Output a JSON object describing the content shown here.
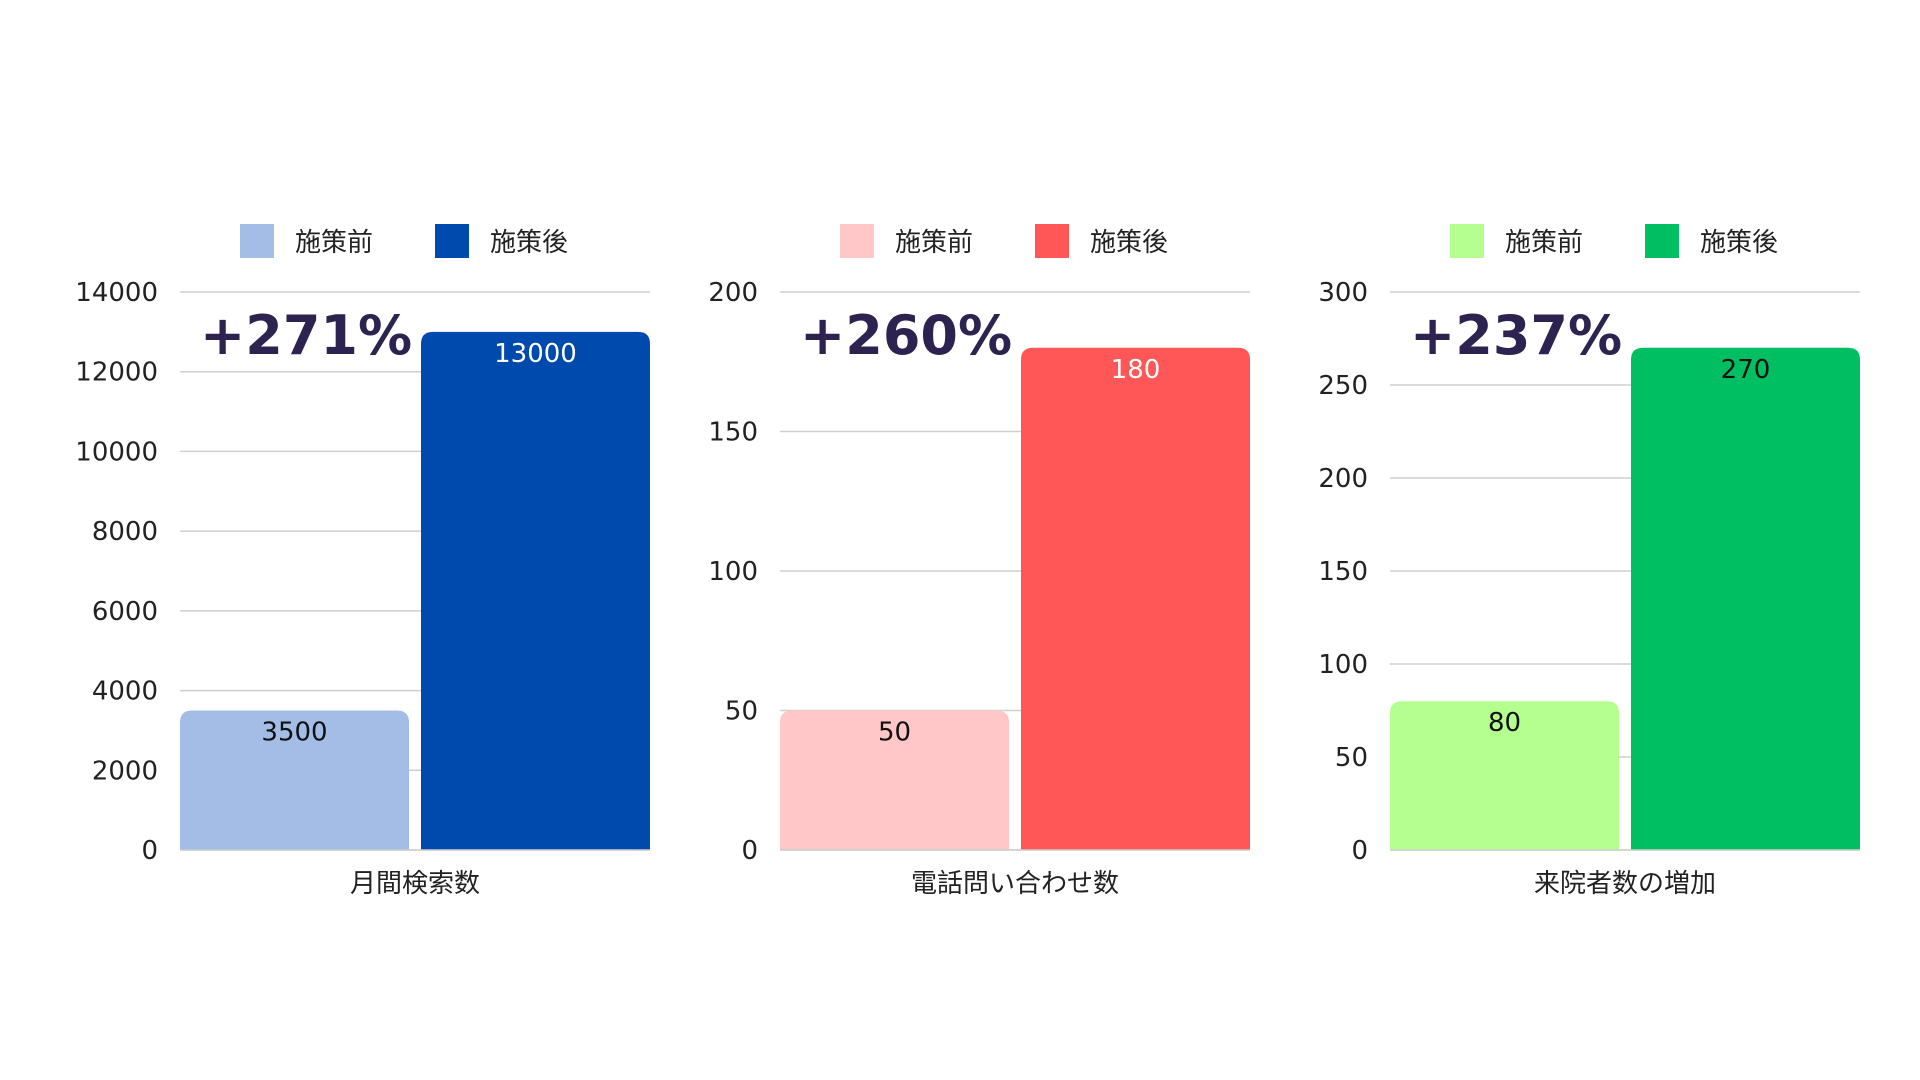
{
  "chart_data": [
    {
      "type": "bar",
      "categories": [
        "月間検索数"
      ],
      "series": [
        {
          "name": "施策前",
          "values": [
            3500
          ],
          "color": "#a3bde6"
        },
        {
          "name": "施策後",
          "values": [
            13000
          ],
          "color": "#004aad"
        }
      ],
      "ylim": [
        0,
        14000
      ],
      "yticks": [
        0,
        2000,
        4000,
        6000,
        8000,
        10000,
        12000,
        14000
      ],
      "change_label": "+271%",
      "data_label_colors": [
        "#111111",
        "#ffffff"
      ],
      "legend": "top",
      "grid": true
    },
    {
      "type": "bar",
      "categories": [
        "電話問い合わせ数"
      ],
      "series": [
        {
          "name": "施策前",
          "values": [
            50
          ],
          "color": "#ffc7c7"
        },
        {
          "name": "施策後",
          "values": [
            180
          ],
          "color": "#ff5757"
        }
      ],
      "ylim": [
        0,
        200
      ],
      "yticks": [
        0,
        50,
        100,
        150,
        200
      ],
      "change_label": "+260%",
      "data_label_colors": [
        "#111111",
        "#ffffff"
      ],
      "legend": "top",
      "grid": true
    },
    {
      "type": "bar",
      "categories": [
        "来院者数の増加"
      ],
      "series": [
        {
          "name": "施策前",
          "values": [
            80
          ],
          "color": "#b4ff8f"
        },
        {
          "name": "施策後",
          "values": [
            270
          ],
          "color": "#00bf63"
        }
      ],
      "ylim": [
        0,
        300
      ],
      "yticks": [
        0,
        50,
        100,
        150,
        200,
        250,
        300
      ],
      "change_label": "+237%",
      "data_label_colors": [
        "#111111",
        "#111111"
      ],
      "legend": "top",
      "grid": true
    }
  ]
}
